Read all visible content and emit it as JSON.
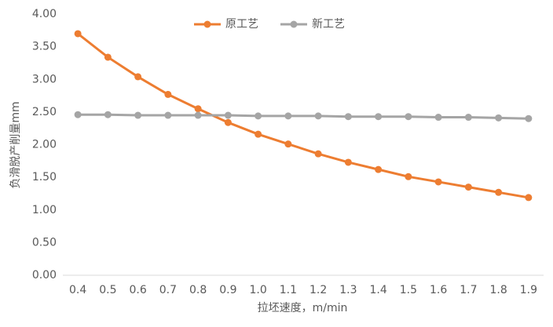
{
  "chart_data": {
    "type": "line",
    "x_label": "拉坯速度，m/min",
    "y_label": "负滑脱产削量mm",
    "categories": [
      "0.4",
      "0.5",
      "0.6",
      "0.7",
      "0.8",
      "0.9",
      "1.0",
      "1.1",
      "1.2",
      "1.3",
      "1.4",
      "1.5",
      "1.6",
      "1.7",
      "1.8",
      "1.9"
    ],
    "series": [
      {
        "name": "原工艺",
        "color": "#ed7d31",
        "values": [
          3.7,
          3.34,
          3.04,
          2.77,
          2.55,
          2.34,
          2.16,
          2.01,
          1.86,
          1.73,
          1.62,
          1.51,
          1.43,
          1.35,
          1.27,
          1.19
        ]
      },
      {
        "name": "新工艺",
        "color": "#a5a5a5",
        "values": [
          2.46,
          2.46,
          2.45,
          2.45,
          2.45,
          2.45,
          2.44,
          2.44,
          2.44,
          2.43,
          2.43,
          2.43,
          2.42,
          2.42,
          2.41,
          2.4
        ]
      }
    ],
    "ylim": [
      0,
      4
    ],
    "yticks": [
      {
        "value": 0,
        "label": "0.00"
      },
      {
        "value": 0.5,
        "label": "0.50"
      },
      {
        "value": 1,
        "label": "1.00"
      },
      {
        "value": 1.5,
        "label": "1.50"
      },
      {
        "value": 2,
        "label": "2.00"
      },
      {
        "value": 2.5,
        "label": "2.50"
      },
      {
        "value": 3,
        "label": "3.00"
      },
      {
        "value": 3.5,
        "label": "3.50"
      },
      {
        "value": 4,
        "label": "4.00"
      }
    ],
    "grid": false,
    "legend": "top"
  }
}
